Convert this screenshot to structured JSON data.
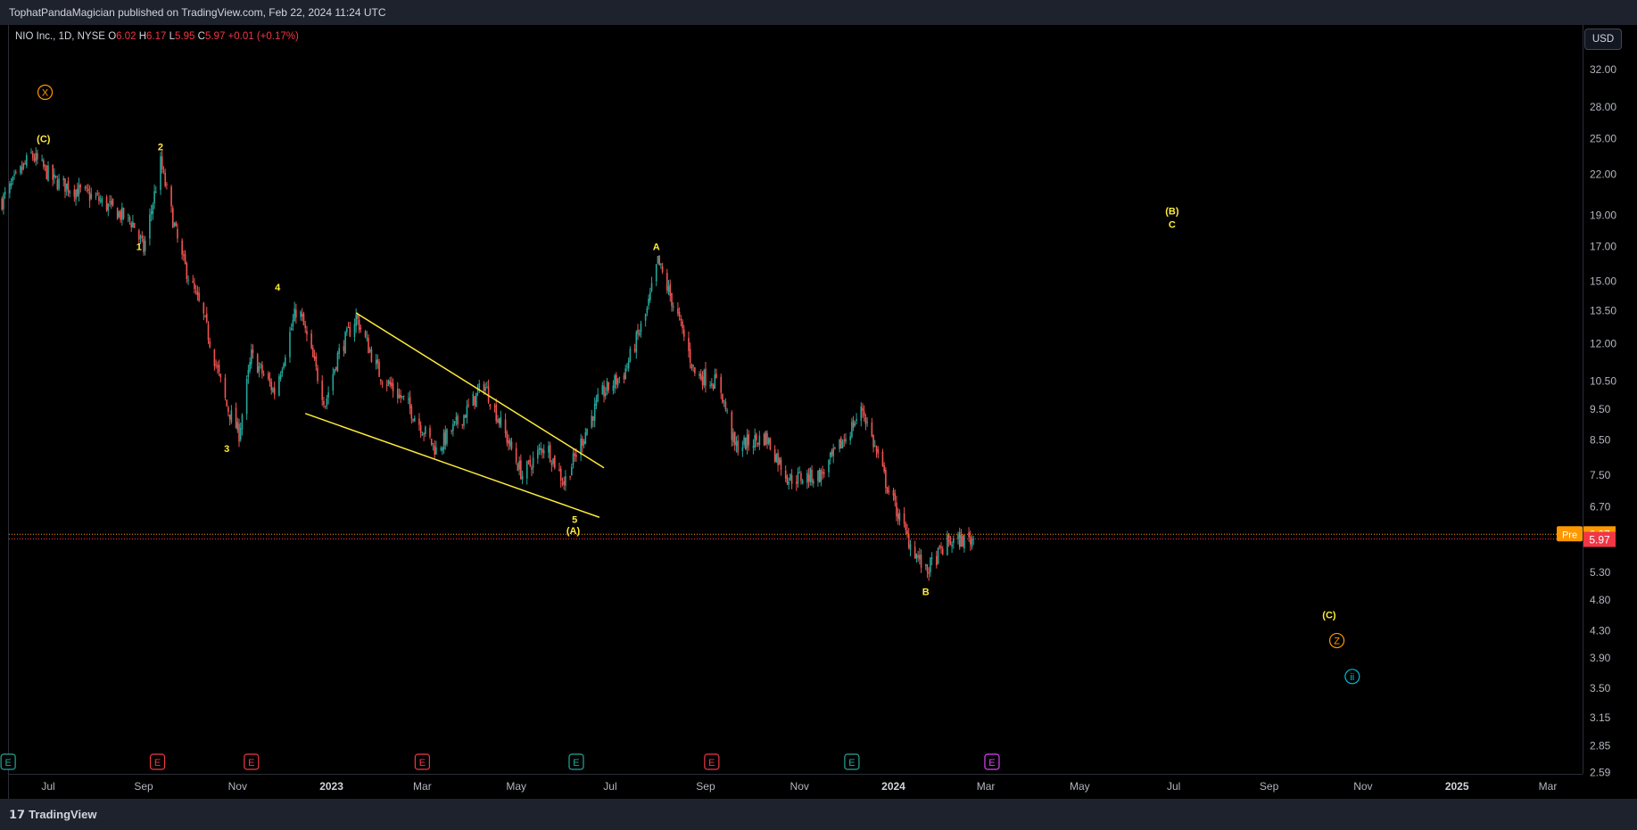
{
  "header": {
    "published": "TophatPandaMagician published on TradingView.com, Feb 22, 2024 11:24 UTC"
  },
  "legend": {
    "symbol": "NIO Inc., 1D, NYSE",
    "open_label": "O",
    "open": "6.02",
    "high_label": "H",
    "high": "6.17",
    "low_label": "L",
    "low": "5.95",
    "close_label": "C",
    "close": "5.97",
    "change": "+0.01 (+0.17%)"
  },
  "currency_button": "USD",
  "price_tags": {
    "pre_label": "Pre",
    "pre_value": "6.07",
    "last_value": "5.97"
  },
  "footer": {
    "logo": "𝟭𝟳",
    "brand": "TradingView"
  },
  "colors": {
    "up": "#26a69a",
    "down": "#ef5350",
    "wave": "#ffeb3b",
    "x_circle": "#ff9800",
    "ii_circle": "#00bcd4",
    "earnings_teal": "#26a69a",
    "earnings_red": "#f23645",
    "earnings_purple": "#e040fb",
    "trendline": "#ffeb3b"
  },
  "chart_data": {
    "type": "candlestick",
    "scale": "log",
    "y_ticks": [
      "32.00",
      "28.00",
      "25.00",
      "22.00",
      "19.00",
      "17.00",
      "15.00",
      "13.50",
      "12.00",
      "10.50",
      "9.50",
      "8.50",
      "7.50",
      "6.70",
      "5.30",
      "4.80",
      "4.30",
      "3.90",
      "3.50",
      "3.15",
      "2.85",
      "2.59"
    ],
    "x_ticks": [
      {
        "label": "Jul",
        "bold": false
      },
      {
        "label": "Sep",
        "bold": false
      },
      {
        "label": "Nov",
        "bold": false
      },
      {
        "label": "2023",
        "bold": true
      },
      {
        "label": "Mar",
        "bold": false
      },
      {
        "label": "May",
        "bold": false
      },
      {
        "label": "Jul",
        "bold": false
      },
      {
        "label": "Sep",
        "bold": false
      },
      {
        "label": "Nov",
        "bold": false
      },
      {
        "label": "2024",
        "bold": true
      },
      {
        "label": "Mar",
        "bold": false
      },
      {
        "label": "May",
        "bold": false
      },
      {
        "label": "Jul",
        "bold": false
      },
      {
        "label": "Sep",
        "bold": false
      },
      {
        "label": "Nov",
        "bold": false
      },
      {
        "label": "2025",
        "bold": true
      },
      {
        "label": "Mar",
        "bold": false
      }
    ],
    "price_path": [
      [
        "2022-06-01",
        20.0
      ],
      [
        "2022-06-20",
        23.6
      ],
      [
        "2022-07-05",
        21.5
      ],
      [
        "2022-08-01",
        20.2
      ],
      [
        "2022-08-25",
        18.5
      ],
      [
        "2022-09-01",
        16.8
      ],
      [
        "2022-09-12",
        22.9
      ],
      [
        "2022-09-25",
        16.5
      ],
      [
        "2022-10-10",
        13.2
      ],
      [
        "2022-10-25",
        9.6
      ],
      [
        "2022-11-02",
        8.7
      ],
      [
        "2022-11-10",
        11.5
      ],
      [
        "2022-11-25",
        10.1
      ],
      [
        "2022-12-10",
        13.8
      ],
      [
        "2022-12-28",
        9.7
      ],
      [
        "2023-01-05",
        11.5
      ],
      [
        "2023-01-17",
        13.2
      ],
      [
        "2023-02-01",
        10.8
      ],
      [
        "2023-02-20",
        9.6
      ],
      [
        "2023-03-10",
        8.2
      ],
      [
        "2023-03-28",
        9.3
      ],
      [
        "2023-04-10",
        10.4
      ],
      [
        "2023-05-05",
        7.5
      ],
      [
        "2023-05-20",
        8.4
      ],
      [
        "2023-06-01",
        7.3
      ],
      [
        "2023-06-10",
        8.2
      ],
      [
        "2023-06-25",
        10.0
      ],
      [
        "2023-07-10",
        10.8
      ],
      [
        "2023-07-25",
        13.5
      ],
      [
        "2023-08-01",
        16.1
      ],
      [
        "2023-08-15",
        13.0
      ],
      [
        "2023-08-25",
        10.8
      ],
      [
        "2023-09-10",
        10.4
      ],
      [
        "2023-09-20",
        8.3
      ],
      [
        "2023-10-10",
        8.6
      ],
      [
        "2023-10-25",
        7.4
      ],
      [
        "2023-11-15",
        7.5
      ],
      [
        "2023-12-01",
        8.6
      ],
      [
        "2023-12-12",
        9.5
      ],
      [
        "2023-12-28",
        7.2
      ],
      [
        "2024-01-10",
        6.0
      ],
      [
        "2024-01-22",
        5.3
      ],
      [
        "2024-02-05",
        5.9
      ],
      [
        "2024-02-22",
        5.97
      ]
    ],
    "last_close": 5.97,
    "pre_market": 6.07,
    "wave_labels": [
      {
        "text": "(C)",
        "date": "2022-06-28",
        "price": 25.0
      },
      {
        "text": "1",
        "date": "2022-08-29",
        "price": 17.0
      },
      {
        "text": "2",
        "date": "2022-09-12",
        "price": 24.3
      },
      {
        "text": "3",
        "date": "2022-10-25",
        "price": 8.25
      },
      {
        "text": "4",
        "date": "2022-11-27",
        "price": 14.7
      },
      {
        "text": "5",
        "date": "2023-06-08",
        "price": 6.4
      },
      {
        "text": "(A)",
        "date": "2023-06-07",
        "price": 6.15
      },
      {
        "text": "A",
        "date": "2023-07-31",
        "price": 17.0
      },
      {
        "text": "B",
        "date": "2024-01-22",
        "price": 4.95
      },
      {
        "text": "(B)",
        "date": "2024-06-30",
        "price": 19.3
      },
      {
        "text": "C",
        "date": "2024-06-30",
        "price": 18.4
      },
      {
        "text": "(C)",
        "date": "2024-10-10",
        "price": 4.55
      }
    ],
    "circled_labels": [
      {
        "text": "X",
        "date": "2022-06-29",
        "price": 29.5,
        "color": "#ff9800"
      },
      {
        "text": "Z",
        "date": "2024-10-15",
        "price": 4.15,
        "color": "#ff9800"
      },
      {
        "text": "ii",
        "date": "2024-10-25",
        "price": 3.65,
        "color": "#00bcd4"
      }
    ],
    "trendlines": [
      {
        "from": {
          "date": "2023-01-17",
          "price": 13.4
        },
        "to": {
          "date": "2023-06-27",
          "price": 7.7
        }
      },
      {
        "from": {
          "date": "2022-12-15",
          "price": 9.35
        },
        "to": {
          "date": "2023-06-24",
          "price": 6.45
        }
      }
    ],
    "earnings_markers": [
      {
        "date": "2022-06-05",
        "color": "#26a69a"
      },
      {
        "date": "2022-09-10",
        "color": "#f23645"
      },
      {
        "date": "2022-11-10",
        "color": "#f23645"
      },
      {
        "date": "2023-03-01",
        "color": "#f23645"
      },
      {
        "date": "2023-06-09",
        "color": "#26a69a"
      },
      {
        "date": "2023-09-05",
        "color": "#f23645"
      },
      {
        "date": "2023-12-05",
        "color": "#26a69a"
      },
      {
        "date": "2024-03-05",
        "color": "#e040fb"
      }
    ],
    "earnings_glyph": "E"
  }
}
